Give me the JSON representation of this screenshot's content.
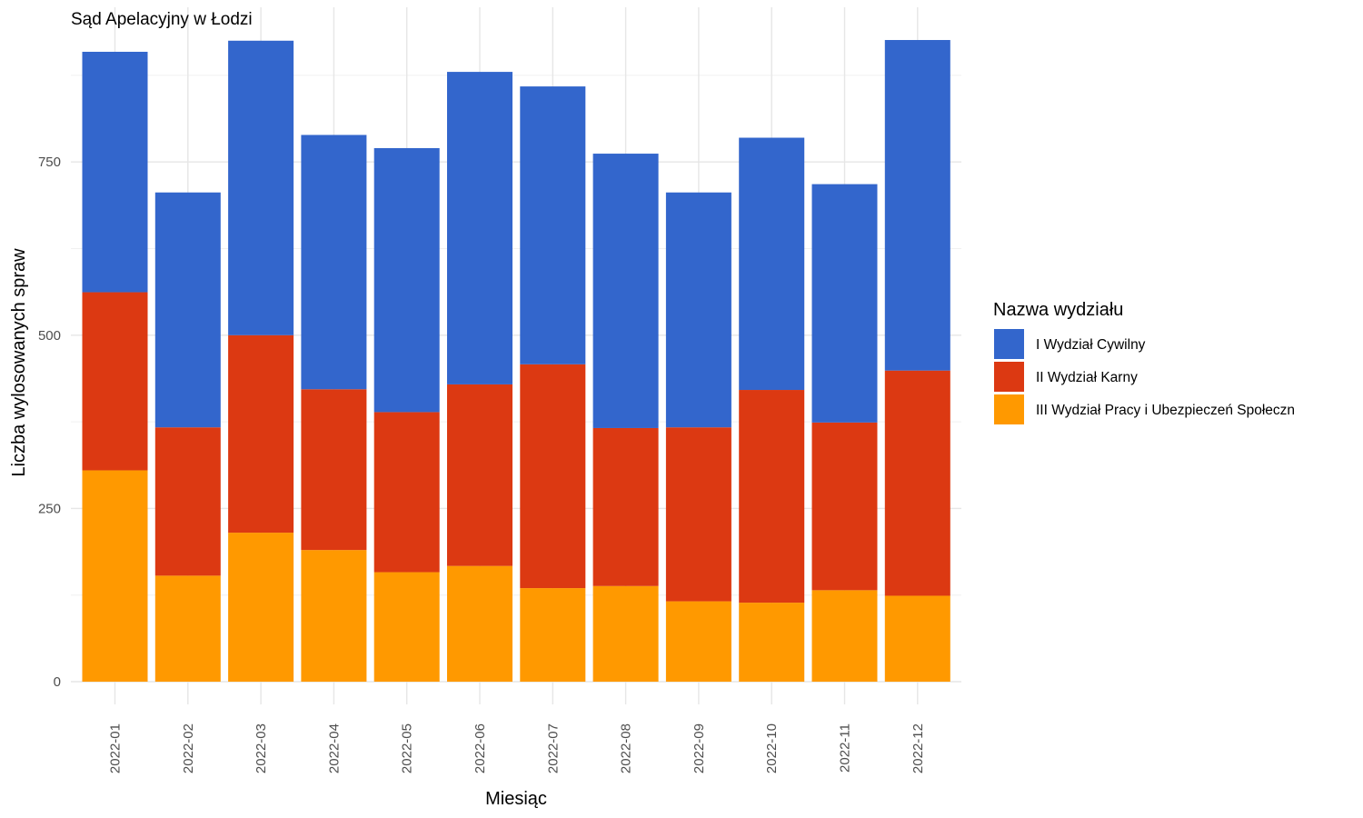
{
  "chart_data": {
    "type": "bar",
    "stacked": true,
    "title": "Sąd Apelacyjny w Łodzi",
    "xlabel": "Miesiąc",
    "ylabel": "Liczba wylosowanych spraw",
    "ylim": [
      0,
      960
    ],
    "yticks": [
      0,
      250,
      500,
      750
    ],
    "grid": true,
    "legend_title": "Nazwa wydziału",
    "legend_position": "right",
    "categories": [
      "2022-01",
      "2022-02",
      "2022-03",
      "2022-04",
      "2022-05",
      "2022-06",
      "2022-07",
      "2022-08",
      "2022-09",
      "2022-10",
      "2022-11",
      "2022-12"
    ],
    "series": [
      {
        "name": "III Wydział Pracy i Ubezpieczeń Społeczn",
        "color": "#FF9900",
        "values": [
          305,
          153,
          215,
          190,
          158,
          167,
          135,
          138,
          116,
          114,
          132,
          124
        ]
      },
      {
        "name": "II Wydział Karny",
        "color": "#DC3912",
        "values": [
          257,
          214,
          285,
          232,
          231,
          262,
          323,
          228,
          251,
          307,
          242,
          325
        ]
      },
      {
        "name": "I Wydział Cywilny",
        "color": "#3366CC",
        "values": [
          347,
          339,
          425,
          367,
          381,
          451,
          401,
          396,
          339,
          364,
          344,
          477
        ]
      }
    ],
    "legend_order": [
      "I Wydział Cywilny",
      "II Wydział Karny",
      "III Wydział Pracy i Ubezpieczeń Społeczn"
    ]
  }
}
